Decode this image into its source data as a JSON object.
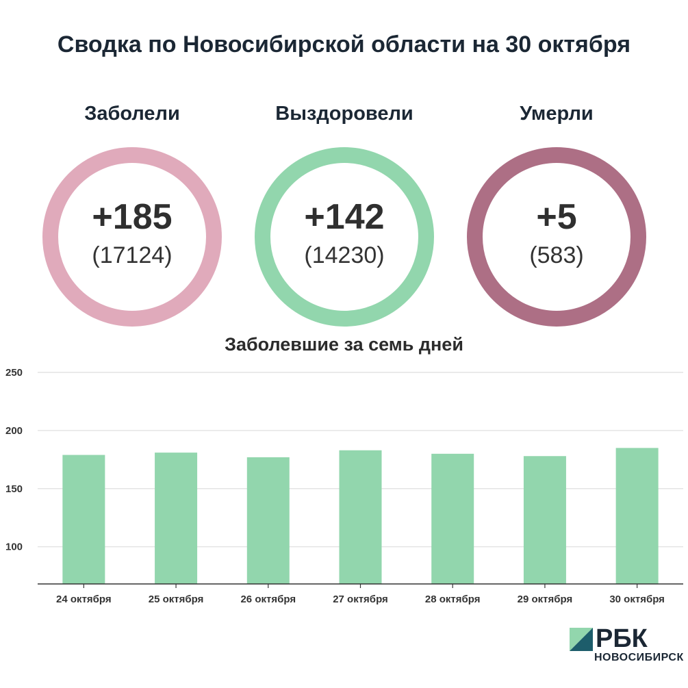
{
  "title": "Сводка по Новосибирской области на 30 октября",
  "stats": [
    {
      "label": "Заболели",
      "value": "+185",
      "total": "(17124)",
      "color": "#e0aabb"
    },
    {
      "label": "Выздоровели",
      "value": "+142",
      "total": "(14230)",
      "color": "#92d6ad"
    },
    {
      "label": "Умерли",
      "value": "+5",
      "total": "(583)",
      "color": "#ad6f85"
    }
  ],
  "chart_data": {
    "type": "bar",
    "title": "Заболевшие за семь дней",
    "categories": [
      "24 октября",
      "25 октября",
      "26 октября",
      "27 октября",
      "28 октября",
      "29 октября",
      "30 октября"
    ],
    "values": [
      179,
      181,
      177,
      183,
      180,
      178,
      185
    ],
    "ylim": [
      68,
      250
    ],
    "yticks": [
      100,
      150,
      200,
      250
    ],
    "grid": true,
    "bar_color": "#92d6ad"
  },
  "logo": {
    "name": "РБК",
    "sub": "НОВОСИБИРСК",
    "color_light": "#92d6ad",
    "color_dark": "#1d5d6b"
  }
}
